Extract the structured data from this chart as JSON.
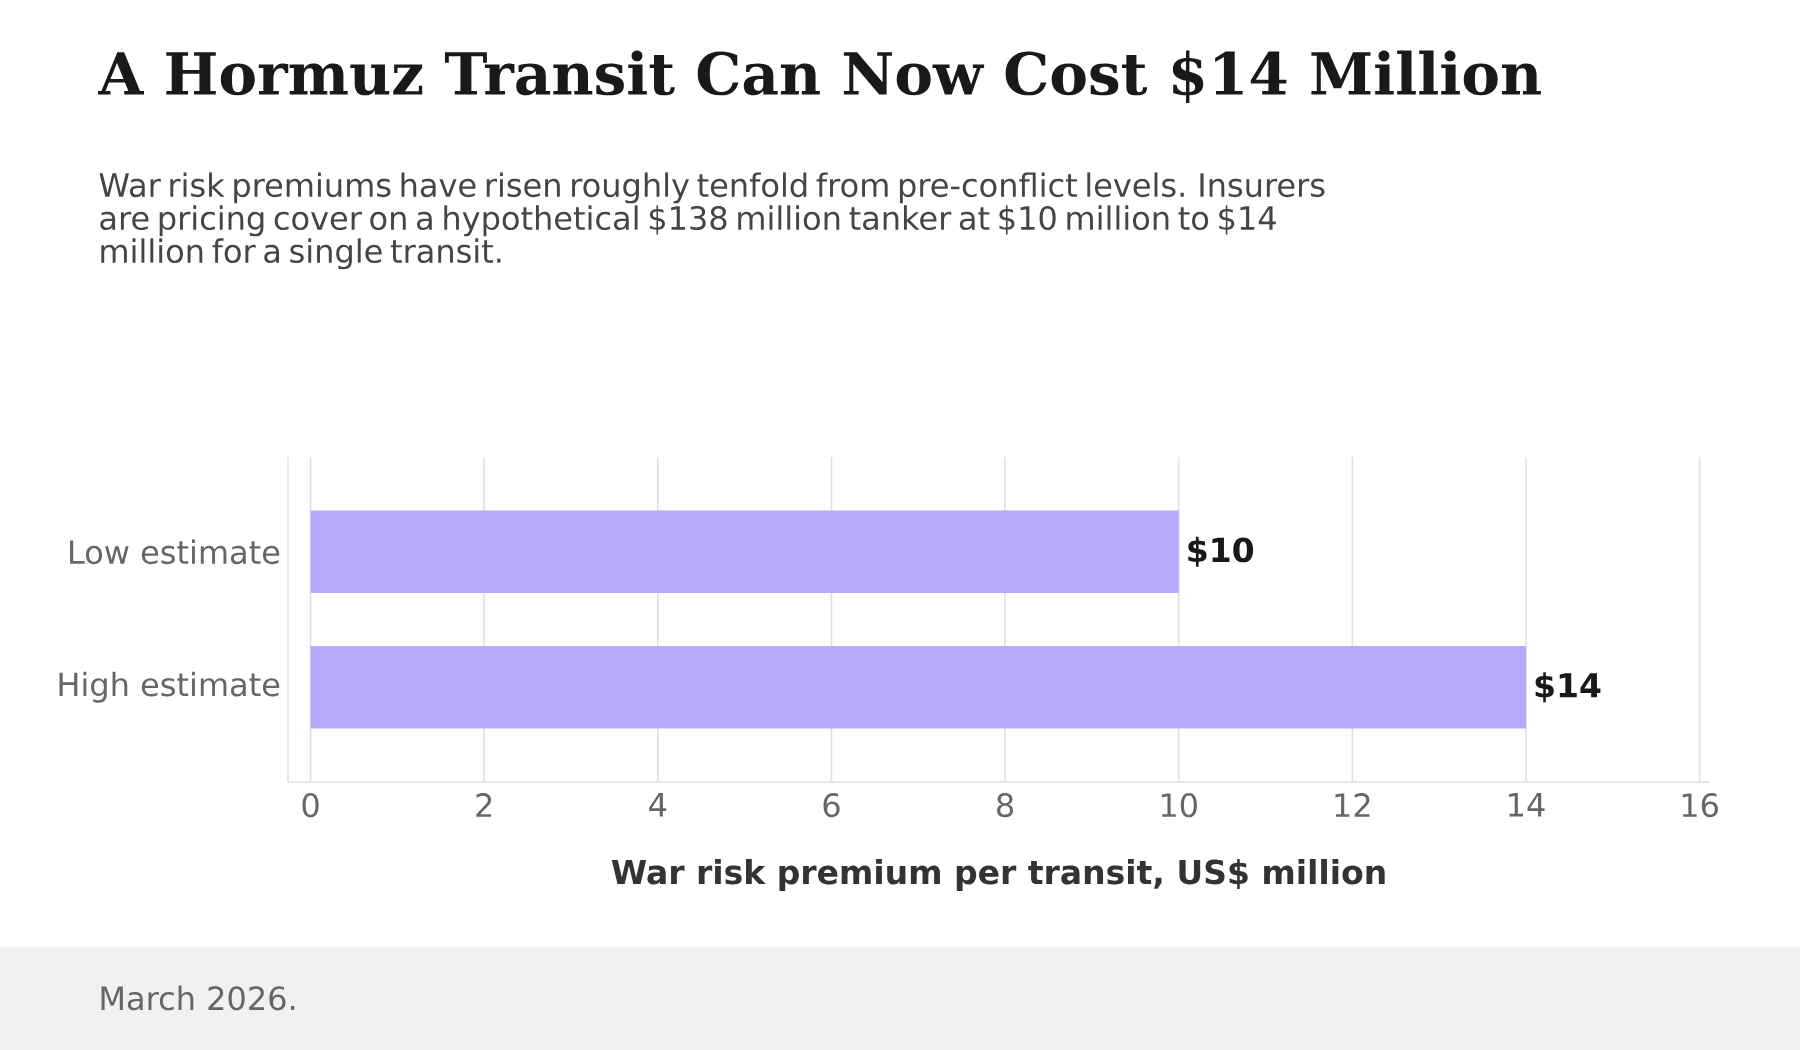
{
  "chart_data": {
    "type": "bar",
    "orientation": "horizontal",
    "title": "A Hormuz Transit Can Now Cost $14 Million",
    "subtitle": "War risk premiums have risen roughly tenfold from pre-conflict levels. Insurers are pricing cover on a hypothetical $138 million tanker at $10 million to $14 million for a single transit.",
    "categories": [
      "Low estimate",
      "High estimate"
    ],
    "values": [
      10,
      14
    ],
    "color": "#b8a9fd",
    "value_labels": [
      "$10",
      "$14"
    ],
    "xlabel": "War risk premium per transit, US$ million",
    "xlim": [
      -0.26,
      16.12
    ],
    "xticks": [
      0,
      2,
      4,
      6,
      8,
      10,
      12,
      14,
      16
    ],
    "grid": "x",
    "annotations": [
      "March 2026."
    ]
  }
}
